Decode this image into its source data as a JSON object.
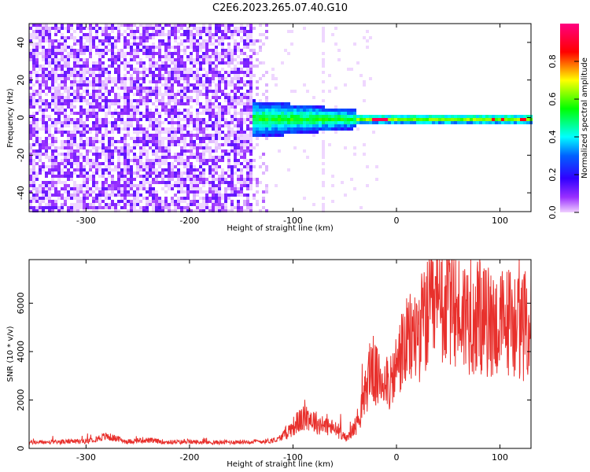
{
  "chart_data": [
    {
      "type": "heatmap",
      "title": "C2E6.2023.265.07.40.G10",
      "xlabel": "Height of straight line (km)",
      "ylabel": "Frequency (Hz)",
      "xlim": [
        -355,
        130
      ],
      "ylim": [
        -50,
        50
      ],
      "xticks": [
        -300,
        -200,
        -100,
        0,
        100
      ],
      "yticks": [
        -40,
        -20,
        0,
        20,
        40
      ],
      "colorbar": {
        "label": "Normalized spectral amplitude",
        "range": [
          0,
          1
        ],
        "ticks": [
          0.0,
          0.2,
          0.4,
          0.6,
          0.8
        ],
        "colors": [
          "#f0d0ff",
          "#7a00ff",
          "#0000ff",
          "#00ffff",
          "#00ff00",
          "#ffff00",
          "#ff0000",
          "#ff0080"
        ]
      },
      "regions": [
        {
          "x_range": [
            -355,
            -140
          ],
          "freq_range": [
            -50,
            50
          ],
          "amplitude": 0.12,
          "description_level": "noise"
        },
        {
          "x_range": [
            -140,
            -40
          ],
          "freq_range": [
            -12,
            12
          ],
          "amplitude": 0.35
        },
        {
          "x_range": [
            -40,
            130
          ],
          "freq_range": [
            -3,
            3
          ],
          "amplitude": 0.55
        },
        {
          "x_range": [
            -25,
            -10
          ],
          "freq_range": [
            -1,
            1
          ],
          "amplitude": 0.95
        }
      ]
    },
    {
      "type": "line",
      "xlabel": "Height of straight line (km)",
      "ylabel": "SNR (10 * v/v)",
      "xlim": [
        -355,
        130
      ],
      "ylim": [
        0,
        7800
      ],
      "xticks": [
        -300,
        -200,
        -100,
        0,
        100
      ],
      "yticks": [
        0,
        2000,
        4000,
        6000
      ],
      "color": "#e8302c",
      "x": [
        -355,
        -330,
        -300,
        -280,
        -260,
        -245,
        -220,
        -200,
        -180,
        -160,
        -140,
        -125,
        -115,
        -105,
        -95,
        -85,
        -75,
        -65,
        -55,
        -48,
        -40,
        -32,
        -25,
        -18,
        -10,
        -5,
        0,
        5,
        10,
        20,
        30,
        40,
        50,
        60,
        70,
        80,
        90,
        100,
        110,
        120,
        130
      ],
      "y": [
        250,
        260,
        300,
        500,
        280,
        350,
        260,
        270,
        240,
        260,
        280,
        300,
        350,
        700,
        1100,
        1300,
        1000,
        900,
        700,
        400,
        900,
        1800,
        3500,
        2800,
        3000,
        2600,
        3400,
        4000,
        4300,
        4800,
        5400,
        5700,
        6000,
        5600,
        5500,
        5300,
        5200,
        5100,
        5300,
        5000,
        5200
      ]
    }
  ]
}
